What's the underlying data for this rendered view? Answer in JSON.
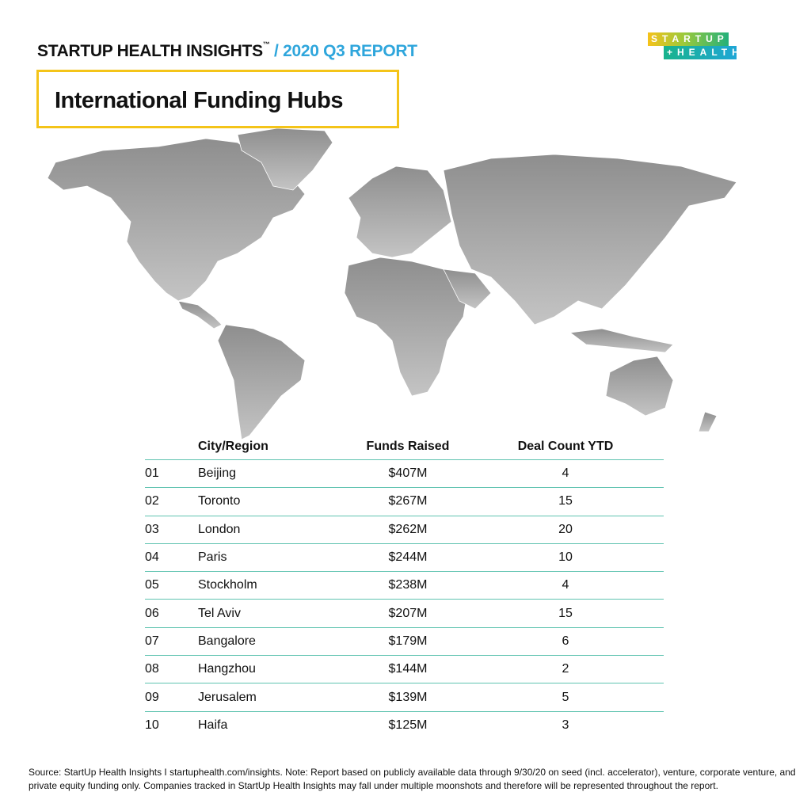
{
  "header": {
    "brand": "STARTUP HEALTH INSIGHTS",
    "tm": "™",
    "report": "/ 2020 Q3 REPORT"
  },
  "logo": {
    "line1": "STARTUP",
    "line2": "+HEALTH",
    "colors": [
      "#f6c21a",
      "#23b07a",
      "#1fa6d6"
    ]
  },
  "title": "International Funding Hubs",
  "table": {
    "columns": [
      "",
      "City/Region",
      "Funds Raised",
      "Deal Count YTD"
    ],
    "rows": [
      [
        "01",
        "Beijing",
        "$407M",
        "4"
      ],
      [
        "02",
        "Toronto",
        "$267M",
        "15"
      ],
      [
        "03",
        "London",
        "$262M",
        "20"
      ],
      [
        "04",
        "Paris",
        "$244M",
        "10"
      ],
      [
        "05",
        "Stockholm",
        "$238M",
        "4"
      ],
      [
        "06",
        "Tel Aviv",
        "$207M",
        "15"
      ],
      [
        "07",
        "Bangalore",
        "$179M",
        "6"
      ],
      [
        "08",
        "Hangzhou",
        "$144M",
        "2"
      ],
      [
        "09",
        "Jerusalem",
        "$139M",
        "5"
      ],
      [
        "10",
        "Haifa",
        "$125M",
        "3"
      ]
    ]
  },
  "footer": "Source: StartUp Health Insights I startuphealth.com/insights. Note: Report based on publicly available data through 9/30/20 on seed (incl. accelerator), venture, corporate venture, and private equity funding only. Companies tracked in StartUp Health Insights may fall under multiple moonshots and therefore will be represented throughout the report.",
  "colors": {
    "accent_blue": "#2fa6dc",
    "title_border": "#f4c419",
    "map_gray": "#9a9a9a",
    "rule_teal": "#5fc3b0"
  }
}
